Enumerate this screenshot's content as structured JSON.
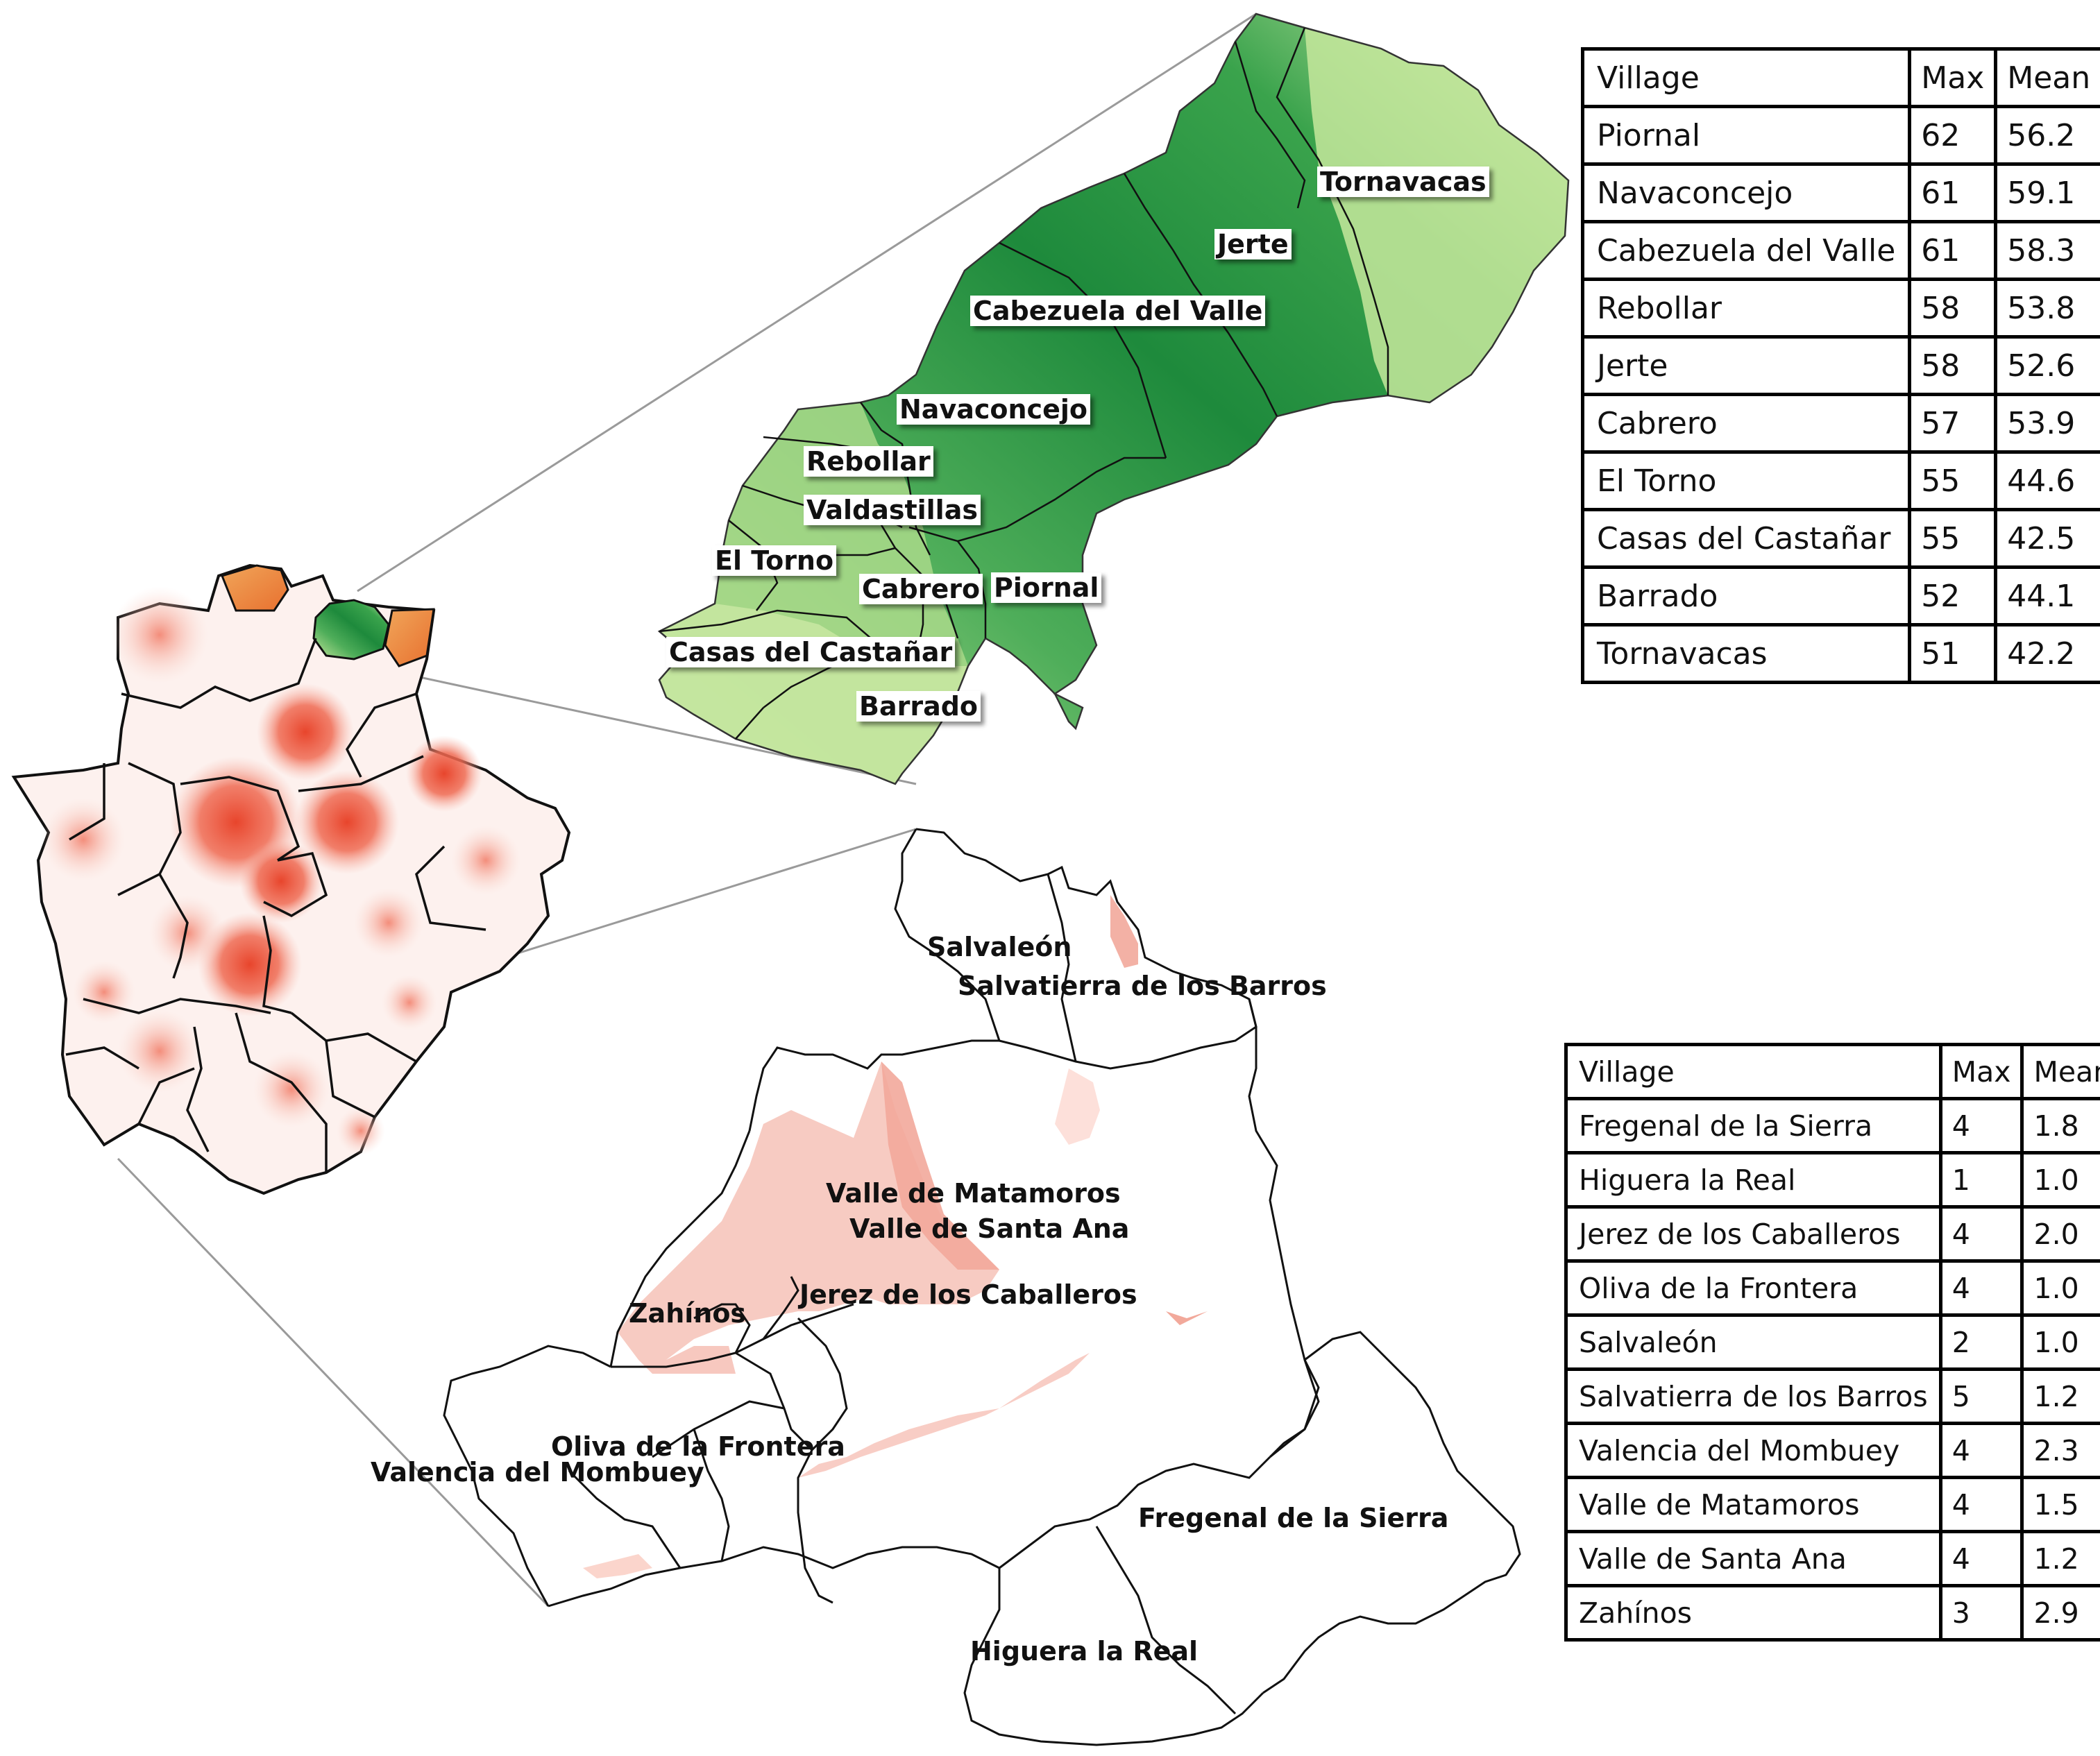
{
  "map_top": {
    "region_labels": [
      "Tornavacas",
      "Jerte",
      "Cabezuela del Valle",
      "Navaconcejo",
      "Rebollar",
      "Valdastillas",
      "El Torno",
      "Cabrero",
      "Piornal",
      "Casas del Castañar",
      "Barrado"
    ]
  },
  "map_bottom": {
    "region_labels": [
      "Salvaleón",
      "Salvatierra de los Barros",
      "Valle de Matamoros",
      "Valle de Santa Ana",
      "Zahínos",
      "Jerez de los Caballeros",
      "Oliva de la Frontera",
      "Valencia del Mombuey",
      "Fregenal de la Sierra",
      "Higuera la Real"
    ]
  },
  "table_top": {
    "headers": [
      "Village",
      "Max",
      "Mean"
    ],
    "rows": [
      [
        "Piornal",
        "62",
        "56.2"
      ],
      [
        "Navaconcejo",
        "61",
        "59.1"
      ],
      [
        "Cabezuela del Valle",
        "61",
        "58.3"
      ],
      [
        "Rebollar",
        "58",
        "53.8"
      ],
      [
        "Jerte",
        "58",
        "52.6"
      ],
      [
        "Cabrero",
        "57",
        "53.9"
      ],
      [
        "El Torno",
        "55",
        "44.6"
      ],
      [
        "Casas del Castañar",
        "55",
        "42.5"
      ],
      [
        "Barrado",
        "52",
        "44.1"
      ],
      [
        "Tornavacas",
        "51",
        "42.2"
      ]
    ]
  },
  "table_bottom": {
    "headers": [
      "Village",
      "Max",
      "Mean"
    ],
    "rows": [
      [
        "Fregenal de la Sierra",
        "4",
        "1.8"
      ],
      [
        "Higuera la Real",
        "1",
        "1.0"
      ],
      [
        "Jerez de los Caballeros",
        "4",
        "2.0"
      ],
      [
        "Oliva de la Frontera",
        "4",
        "1.0"
      ],
      [
        "Salvaleón",
        "2",
        "1.0"
      ],
      [
        "Salvatierra de los Barros",
        "5",
        "1.2"
      ],
      [
        "Valencia del Mombuey",
        "4",
        "2.3"
      ],
      [
        "Valle de Matamoros",
        "4",
        "1.5"
      ],
      [
        "Valle de Santa Ana",
        "4",
        "1.2"
      ],
      [
        "Zahínos",
        "3",
        "2.9"
      ]
    ]
  },
  "colors": {
    "green_dark": "#1e8a3c",
    "green_mid": "#3fa84f",
    "green_light": "#a8d88a",
    "green_pale": "#d6efb0",
    "heat_strong": "#e8452c",
    "heat_mid": "#f2826e",
    "heat_light": "#f8c8bd",
    "heat_pale": "#fbe1da",
    "border": "#111111",
    "leader_line": "#9a9a9a"
  }
}
